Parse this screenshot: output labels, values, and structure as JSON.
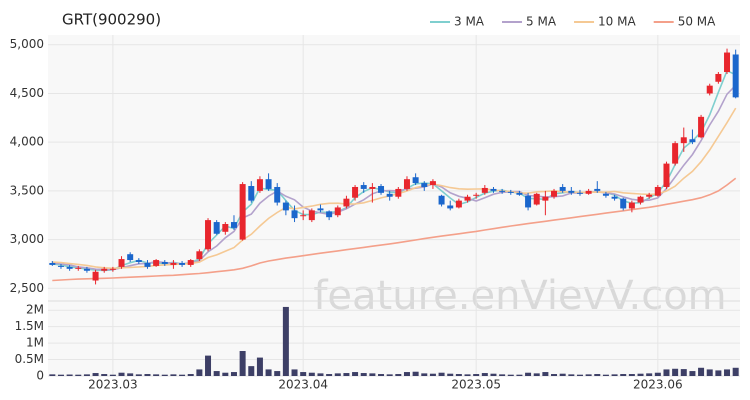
{
  "chart_data": {
    "type": "candlestick",
    "title": "GRT(900290)",
    "watermark": "feature.enVievV.com",
    "grid": true,
    "up_color": "#e8262d",
    "down_color": "#1a66cc",
    "categories": [
      null,
      null,
      null,
      null,
      null,
      null,
      null,
      "2023.03",
      null,
      null,
      null,
      null,
      null,
      null,
      null,
      null,
      null,
      null,
      null,
      null,
      null,
      null,
      null,
      null,
      null,
      null,
      null,
      null,
      null,
      "2023.04",
      null,
      null,
      null,
      null,
      null,
      null,
      null,
      null,
      null,
      null,
      null,
      null,
      null,
      null,
      null,
      null,
      null,
      null,
      null,
      "2023.05",
      null,
      null,
      null,
      null,
      null,
      null,
      null,
      null,
      null,
      null,
      null,
      null,
      null,
      null,
      null,
      null,
      null,
      null,
      null,
      null,
      "2023.06",
      null,
      null,
      null,
      null,
      null,
      null,
      null,
      null,
      null
    ],
    "open": [
      2760,
      2730,
      2720,
      2700,
      2700,
      2580,
      2680,
      2690,
      2720,
      2850,
      2790,
      2760,
      2730,
      2770,
      2740,
      2760,
      2740,
      2800,
      2900,
      3180,
      3080,
      3180,
      3000,
      3550,
      3500,
      3620,
      3540,
      3380,
      3300,
      3250,
      3200,
      3320,
      3290,
      3250,
      3340,
      3430,
      3560,
      3520,
      3550,
      3470,
      3440,
      3520,
      3640,
      3580,
      3560,
      3450,
      3350,
      3330,
      3400,
      3450,
      3480,
      3520,
      3500,
      3490,
      3480,
      3450,
      3360,
      3400,
      3440,
      3540,
      3500,
      3480,
      3470,
      3520,
      3470,
      3440,
      3420,
      3320,
      3380,
      3440,
      3450,
      3540,
      3780,
      3990,
      4030,
      4050,
      4500,
      4620,
      4720,
      4900
    ],
    "high": [
      2780,
      2750,
      2740,
      2730,
      2720,
      2690,
      2720,
      2720,
      2830,
      2870,
      2810,
      2790,
      2800,
      2790,
      2790,
      2780,
      2800,
      2900,
      3220,
      3200,
      3180,
      3250,
      3590,
      3600,
      3650,
      3680,
      3580,
      3400,
      3350,
      3300,
      3320,
      3360,
      3300,
      3350,
      3450,
      3560,
      3590,
      3580,
      3570,
      3500,
      3540,
      3650,
      3680,
      3600,
      3620,
      3460,
      3400,
      3420,
      3460,
      3480,
      3560,
      3540,
      3520,
      3510,
      3500,
      3480,
      3480,
      3500,
      3520,
      3570,
      3540,
      3510,
      3520,
      3600,
      3490,
      3460,
      3430,
      3400,
      3450,
      3480,
      3560,
      3800,
      4010,
      4150,
      4130,
      4280,
      4600,
      4720,
      4960,
      4950
    ],
    "low": [
      2730,
      2700,
      2680,
      2680,
      2660,
      2540,
      2660,
      2670,
      2700,
      2770,
      2750,
      2700,
      2720,
      2730,
      2700,
      2720,
      2720,
      2780,
      2880,
      3050,
      3050,
      3100,
      2990,
      3380,
      3480,
      3500,
      3350,
      3250,
      3180,
      3200,
      3180,
      3280,
      3200,
      3230,
      3320,
      3400,
      3480,
      3380,
      3460,
      3400,
      3420,
      3500,
      3560,
      3500,
      3520,
      3340,
      3300,
      3320,
      3380,
      3420,
      3460,
      3480,
      3470,
      3460,
      3450,
      3300,
      3350,
      3250,
      3420,
      3480,
      3460,
      3450,
      3460,
      3480,
      3430,
      3400,
      3300,
      3280,
      3360,
      3420,
      3440,
      3520,
      3760,
      3900,
      3980,
      4040,
      4480,
      4600,
      4700,
      4450
    ],
    "close": [
      2740,
      2720,
      2700,
      2710,
      2680,
      2670,
      2700,
      2700,
      2800,
      2790,
      2770,
      2720,
      2790,
      2750,
      2760,
      2740,
      2790,
      2880,
      3200,
      3060,
      3160,
      3120,
      3570,
      3400,
      3620,
      3520,
      3380,
      3300,
      3220,
      3250,
      3300,
      3300,
      3230,
      3330,
      3420,
      3540,
      3520,
      3540,
      3480,
      3440,
      3520,
      3620,
      3580,
      3540,
      3600,
      3360,
      3320,
      3400,
      3440,
      3460,
      3530,
      3500,
      3490,
      3480,
      3460,
      3330,
      3470,
      3440,
      3500,
      3500,
      3480,
      3470,
      3500,
      3500,
      3450,
      3420,
      3320,
      3380,
      3440,
      3460,
      3540,
      3780,
      3990,
      4050,
      4000,
      4260,
      4580,
      4700,
      4920,
      4460
    ],
    "series": [
      {
        "name": "3 MA",
        "color": "#7fcfcf",
        "values": [
          2750,
          2740,
          2720,
          2710,
          2697,
          2687,
          2683,
          2690,
          2733,
          2763,
          2787,
          2760,
          2760,
          2753,
          2767,
          2750,
          2763,
          2803,
          2957,
          3047,
          3140,
          3113,
          3283,
          3363,
          3530,
          3513,
          3507,
          3400,
          3300,
          3257,
          3257,
          3283,
          3277,
          3287,
          3327,
          3430,
          3493,
          3533,
          3513,
          3487,
          3480,
          3527,
          3573,
          3580,
          3573,
          3500,
          3427,
          3360,
          3387,
          3433,
          3477,
          3497,
          3507,
          3490,
          3477,
          3423,
          3420,
          3413,
          3470,
          3480,
          3493,
          3483,
          3483,
          3490,
          3483,
          3457,
          3397,
          3373,
          3380,
          3427,
          3480,
          3593,
          3770,
          3940,
          4013,
          4103,
          4280,
          4513,
          4733,
          4693
        ]
      },
      {
        "name": "5 MA",
        "color": "#b3a2cc",
        "values": [
          2760,
          2750,
          2740,
          2720,
          2710,
          2696,
          2692,
          2692,
          2710,
          2732,
          2752,
          2756,
          2774,
          2764,
          2758,
          2752,
          2758,
          2784,
          2874,
          2934,
          3018,
          3084,
          3222,
          3262,
          3374,
          3446,
          3498,
          3444,
          3408,
          3334,
          3294,
          3274,
          3260,
          3282,
          3316,
          3364,
          3408,
          3470,
          3500,
          3504,
          3500,
          3520,
          3528,
          3540,
          3572,
          3540,
          3480,
          3444,
          3424,
          3396,
          3430,
          3466,
          3484,
          3492,
          3494,
          3452,
          3446,
          3436,
          3440,
          3448,
          3478,
          3478,
          3490,
          3490,
          3480,
          3468,
          3438,
          3414,
          3402,
          3404,
          3428,
          3524,
          3642,
          3764,
          3872,
          4016,
          4176,
          4318,
          4492,
          4584
        ]
      },
      {
        "name": "10 MA",
        "color": "#f5c994",
        "values": [
          2770,
          2765,
          2755,
          2745,
          2735,
          2720,
          2710,
          2705,
          2710,
          2715,
          2720,
          2725,
          2735,
          2740,
          2745,
          2750,
          2756,
          2769,
          2816,
          2843,
          2880,
          2918,
          2996,
          3054,
          3140,
          3218,
          3278,
          3331,
          3315,
          3330,
          3344,
          3362,
          3373,
          3374,
          3364,
          3366,
          3378,
          3402,
          3428,
          3450,
          3472,
          3499,
          3533,
          3554,
          3572,
          3554,
          3534,
          3521,
          3517,
          3519,
          3520,
          3508,
          3499,
          3493,
          3479,
          3476,
          3491,
          3495,
          3501,
          3491,
          3486,
          3484,
          3485,
          3487,
          3486,
          3495,
          3480,
          3474,
          3468,
          3464,
          3468,
          3499,
          3548,
          3630,
          3700,
          3800,
          3920,
          4060,
          4200,
          4350
        ]
      },
      {
        "name": "50 MA",
        "color": "#f4a08a",
        "values": [
          2580,
          2585,
          2590,
          2595,
          2598,
          2600,
          2603,
          2606,
          2610,
          2614,
          2618,
          2622,
          2626,
          2630,
          2634,
          2640,
          2646,
          2652,
          2660,
          2670,
          2680,
          2690,
          2705,
          2730,
          2760,
          2780,
          2795,
          2810,
          2822,
          2835,
          2848,
          2860,
          2872,
          2884,
          2896,
          2908,
          2920,
          2932,
          2944,
          2956,
          2968,
          2982,
          2996,
          3010,
          3024,
          3036,
          3048,
          3060,
          3072,
          3084,
          3098,
          3112,
          3126,
          3140,
          3152,
          3164,
          3176,
          3188,
          3200,
          3212,
          3224,
          3236,
          3248,
          3260,
          3272,
          3284,
          3296,
          3308,
          3320,
          3332,
          3346,
          3362,
          3378,
          3394,
          3410,
          3430,
          3460,
          3500,
          3560,
          3630
        ]
      }
    ],
    "ylim": [
      2380,
      5100
    ],
    "yticks": [
      {
        "value": 2500,
        "label": "2,500"
      },
      {
        "value": 3000,
        "label": "3,000"
      },
      {
        "value": 3500,
        "label": "3,500"
      },
      {
        "value": 4000,
        "label": "4,000"
      },
      {
        "value": 4500,
        "label": "4,500"
      },
      {
        "value": 5000,
        "label": "5,000"
      }
    ],
    "volume": {
      "color": "#3d3f66",
      "ylim": [
        0,
        2250000
      ],
      "yticks": [
        0,
        {
          "value": 500000,
          "label": "0.5M"
        },
        {
          "value": 1000000,
          "label": "1M"
        },
        {
          "value": 1500000,
          "label": "1.5M"
        },
        {
          "value": 2000000,
          "label": "2M"
        }
      ],
      "values": [
        50000,
        40000,
        45000,
        40000,
        50000,
        90000,
        60000,
        40000,
        100000,
        80000,
        50000,
        60000,
        50000,
        40000,
        50000,
        40000,
        60000,
        200000,
        620000,
        150000,
        100000,
        120000,
        760000,
        300000,
        560000,
        200000,
        150000,
        2100000,
        200000,
        120000,
        100000,
        80000,
        60000,
        80000,
        90000,
        120000,
        90000,
        80000,
        60000,
        50000,
        60000,
        120000,
        130000,
        80000,
        70000,
        100000,
        70000,
        60000,
        50000,
        60000,
        90000,
        70000,
        50000,
        40000,
        40000,
        100000,
        80000,
        120000,
        60000,
        70000,
        50000,
        40000,
        50000,
        60000,
        40000,
        50000,
        60000,
        60000,
        70000,
        80000,
        100000,
        200000,
        220000,
        210000,
        150000,
        250000,
        200000,
        170000,
        200000,
        250000
      ]
    }
  }
}
